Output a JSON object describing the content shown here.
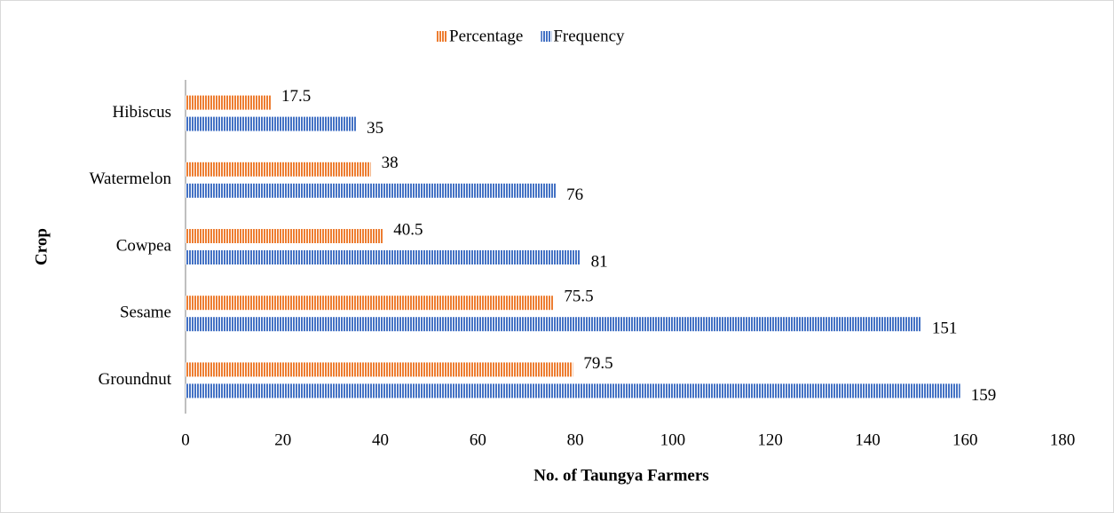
{
  "chart_data": {
    "type": "hbar",
    "x_label": "No. of Taungya Farmers",
    "y_label": "Crop",
    "categories": [
      "Hibiscus",
      "Watermelon",
      "Cowpea",
      "Sesame",
      "Groundnut"
    ],
    "series": [
      {
        "name": "Percentage",
        "color": "#ed7d31",
        "values": [
          17.5,
          38,
          40.5,
          75.5,
          79.5
        ]
      },
      {
        "name": "Frequency",
        "color": "#4472c4",
        "values": [
          35,
          76,
          81,
          151,
          159
        ]
      }
    ],
    "xlim": [
      0,
      180
    ],
    "xticks": [
      0,
      20,
      40,
      60,
      80,
      100,
      120,
      140,
      160,
      180
    ],
    "grid": false,
    "legend": "top"
  }
}
